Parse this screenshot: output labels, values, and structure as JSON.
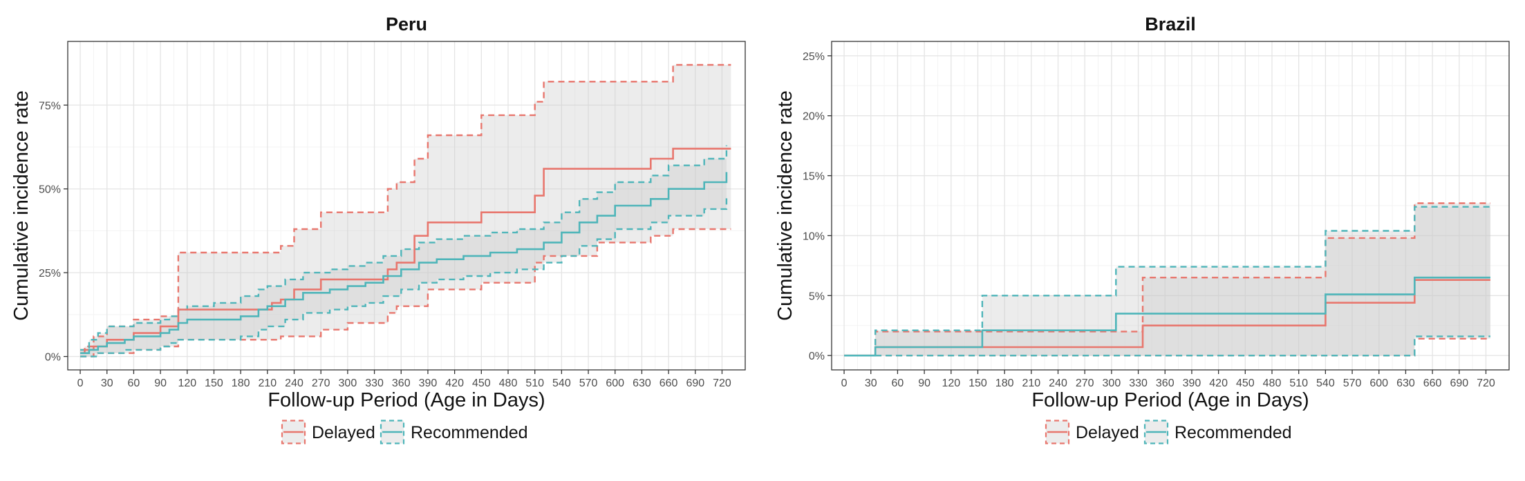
{
  "colors": {
    "delayed": "#E8766D",
    "recommended": "#4EB5B9",
    "ribbon": "#C8C8C8",
    "panel_border": "#333333",
    "grid_major": "#E4E4E4",
    "grid_minor": "#F3F3F3"
  },
  "chart_data": [
    {
      "type": "line",
      "title": "Peru",
      "xlabel": "Follow-up Period (Age in Days)",
      "ylabel": "Cumulative incidence rate",
      "xlim": [
        -14,
        746
      ],
      "ylim": [
        -0.04,
        0.94
      ],
      "xticks": [
        0,
        30,
        60,
        90,
        120,
        150,
        180,
        210,
        240,
        270,
        300,
        330,
        360,
        390,
        420,
        450,
        480,
        510,
        540,
        570,
        600,
        630,
        660,
        690,
        720
      ],
      "yticks": [
        0,
        0.25,
        0.5,
        0.75
      ],
      "ytick_labels": [
        "0%",
        "25%",
        "50%",
        "75%"
      ],
      "grid": true,
      "legend_position": "bottom",
      "legend": [
        "Delayed",
        "Recommended"
      ],
      "series": [
        {
          "name": "Delayed",
          "x": [
            0,
            5,
            15,
            30,
            60,
            90,
            110,
            215,
            225,
            240,
            270,
            300,
            330,
            345,
            355,
            375,
            390,
            420,
            450,
            480,
            510,
            520,
            580,
            630,
            640,
            665,
            730
          ],
          "y": [
            0.01,
            0.02,
            0.03,
            0.05,
            0.07,
            0.09,
            0.14,
            0.16,
            0.17,
            0.2,
            0.23,
            0.23,
            0.23,
            0.26,
            0.28,
            0.36,
            0.4,
            0.4,
            0.43,
            0.43,
            0.48,
            0.56,
            0.56,
            0.56,
            0.59,
            0.62,
            0.62
          ],
          "lower": [
            0.0,
            0.0,
            0.01,
            0.01,
            0.02,
            0.03,
            0.05,
            0.05,
            0.06,
            0.06,
            0.08,
            0.1,
            0.1,
            0.13,
            0.15,
            0.15,
            0.2,
            0.2,
            0.22,
            0.22,
            0.28,
            0.3,
            0.34,
            0.34,
            0.36,
            0.38,
            0.38
          ],
          "upper": [
            0.02,
            0.03,
            0.06,
            0.09,
            0.11,
            0.12,
            0.31,
            0.31,
            0.33,
            0.38,
            0.43,
            0.43,
            0.43,
            0.5,
            0.52,
            0.59,
            0.66,
            0.66,
            0.72,
            0.72,
            0.76,
            0.82,
            0.82,
            0.82,
            0.82,
            0.87,
            0.87
          ]
        },
        {
          "name": "Recommended",
          "x": [
            0,
            10,
            20,
            30,
            50,
            60,
            90,
            100,
            110,
            120,
            150,
            180,
            200,
            210,
            230,
            250,
            280,
            300,
            320,
            340,
            360,
            380,
            400,
            430,
            460,
            490,
            520,
            540,
            560,
            580,
            600,
            640,
            660,
            700,
            725
          ],
          "y": [
            0.01,
            0.02,
            0.03,
            0.04,
            0.05,
            0.06,
            0.07,
            0.08,
            0.1,
            0.11,
            0.11,
            0.12,
            0.14,
            0.15,
            0.17,
            0.19,
            0.2,
            0.21,
            0.22,
            0.24,
            0.26,
            0.28,
            0.29,
            0.3,
            0.31,
            0.32,
            0.34,
            0.37,
            0.4,
            0.42,
            0.45,
            0.47,
            0.5,
            0.52,
            0.55
          ],
          "lower": [
            0.0,
            0.0,
            0.01,
            0.01,
            0.02,
            0.02,
            0.03,
            0.04,
            0.05,
            0.05,
            0.05,
            0.06,
            0.08,
            0.09,
            0.11,
            0.13,
            0.14,
            0.15,
            0.16,
            0.18,
            0.2,
            0.22,
            0.23,
            0.24,
            0.25,
            0.26,
            0.28,
            0.3,
            0.33,
            0.35,
            0.38,
            0.4,
            0.42,
            0.44,
            0.48
          ],
          "upper": [
            0.02,
            0.05,
            0.07,
            0.09,
            0.09,
            0.1,
            0.11,
            0.12,
            0.14,
            0.15,
            0.16,
            0.18,
            0.2,
            0.21,
            0.23,
            0.25,
            0.26,
            0.27,
            0.28,
            0.3,
            0.32,
            0.34,
            0.35,
            0.36,
            0.37,
            0.38,
            0.4,
            0.43,
            0.47,
            0.49,
            0.52,
            0.54,
            0.57,
            0.59,
            0.63
          ]
        }
      ]
    },
    {
      "type": "line",
      "title": "Brazil",
      "xlabel": "Follow-up Period (Age in Days)",
      "ylabel": "Cumulative incidence rate",
      "xlim": [
        -14,
        746
      ],
      "ylim": [
        -0.012,
        0.262
      ],
      "xticks": [
        0,
        30,
        60,
        90,
        120,
        150,
        180,
        210,
        240,
        270,
        300,
        330,
        360,
        390,
        420,
        450,
        480,
        510,
        540,
        570,
        600,
        630,
        660,
        690,
        720
      ],
      "yticks": [
        0,
        0.05,
        0.1,
        0.15,
        0.2,
        0.25
      ],
      "ytick_labels": [
        "0%",
        "5%",
        "10%",
        "15%",
        "20%",
        "25%"
      ],
      "grid": true,
      "legend_position": "bottom",
      "legend": [
        "Delayed",
        "Recommended"
      ],
      "series": [
        {
          "name": "Delayed",
          "x": [
            0,
            35,
            155,
            335,
            540,
            640,
            725
          ],
          "y": [
            0.0,
            0.007,
            0.007,
            0.025,
            0.044,
            0.063,
            0.063
          ],
          "lower": [
            0.0,
            0.0,
            0.0,
            0.0,
            0.0,
            0.014,
            0.014
          ],
          "upper": [
            0.0,
            0.02,
            0.02,
            0.065,
            0.098,
            0.127,
            0.127
          ]
        },
        {
          "name": "Recommended",
          "x": [
            0,
            35,
            155,
            305,
            540,
            640,
            725
          ],
          "y": [
            0.0,
            0.007,
            0.021,
            0.035,
            0.051,
            0.065,
            0.065
          ],
          "lower": [
            0.0,
            0.0,
            0.0,
            0.0,
            0.0,
            0.016,
            0.016
          ],
          "upper": [
            0.0,
            0.021,
            0.05,
            0.074,
            0.104,
            0.124,
            0.124
          ]
        }
      ]
    }
  ]
}
